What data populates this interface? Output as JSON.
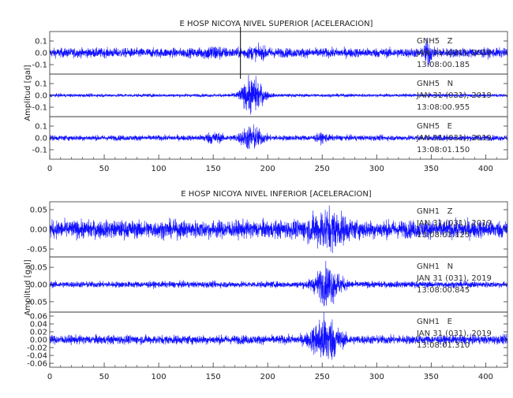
{
  "colors": {
    "trace": "#1010ff",
    "axis": "#333333",
    "marker": "#000000"
  },
  "chart_data": [
    {
      "type": "line",
      "title": "E HOSP NICOYA NIVEL SUPERIOR [ACELERACION]",
      "ylabel": "Amplitud [gal]",
      "xlim": [
        0,
        420
      ],
      "xticks": [
        "0",
        "50",
        "100",
        "150",
        "200",
        "250",
        "300",
        "350",
        "400"
      ],
      "marker_x": 175,
      "series": [
        {
          "channel": "GNH5   Z",
          "date": "JAN 31 (031), 2019",
          "time": "13:08:00.185",
          "ylim": [
            -0.18,
            0.18
          ],
          "yticks": [
            0.1,
            0.0,
            -0.1
          ],
          "ytick_labels": [
            "0.1",
            "0.0",
            "-0.1"
          ],
          "noise_amp": 0.035,
          "events": [
            {
              "t": 150,
              "w": 9,
              "a": 0.03
            },
            {
              "t": 190,
              "w": 12,
              "a": 0.02
            },
            {
              "t": 347,
              "w": 3,
              "a": 0.09
            }
          ]
        },
        {
          "channel": "GNH5   N",
          "date": "JAN 31 (031), 2019",
          "time": "13:08:00.955",
          "ylim": [
            -0.18,
            0.18
          ],
          "yticks": [
            0.1,
            0.0,
            -0.1
          ],
          "ytick_labels": [
            "0.1",
            "0.0",
            "-0.1"
          ],
          "noise_amp": 0.012,
          "events": [
            {
              "t": 186,
              "w": 10,
              "a": 0.13
            }
          ]
        },
        {
          "channel": "GNH5   E",
          "date": "JAN 31 (031), 2019",
          "time": "13:08:01.150",
          "ylim": [
            -0.18,
            0.18
          ],
          "yticks": [
            0.1,
            0.0,
            -0.1
          ],
          "ytick_labels": [
            "0.1",
            "0.0",
            "-0.1"
          ],
          "noise_amp": 0.02,
          "events": [
            {
              "t": 150,
              "w": 8,
              "a": 0.03
            },
            {
              "t": 185,
              "w": 10,
              "a": 0.08
            },
            {
              "t": 250,
              "w": 6,
              "a": 0.02
            }
          ]
        }
      ]
    },
    {
      "type": "line",
      "title": "E HOSP NICOYA NIVEL INFERIOR [ACELERACION]",
      "ylabel": "Amplitud [gal]",
      "xlim": [
        0,
        420
      ],
      "xticks": [
        "0",
        "50",
        "100",
        "150",
        "200",
        "250",
        "300",
        "350",
        "400"
      ],
      "series": [
        {
          "channel": "GNH1   Z",
          "date": "JAN 31 (031), 2019",
          "time": "13:08:01.125",
          "ylim": [
            -0.07,
            0.07
          ],
          "yticks": [
            0.05,
            0.0,
            -0.05
          ],
          "ytick_labels": [
            "0.05",
            "0.00",
            "-0.05"
          ],
          "noise_amp": 0.02,
          "events": [
            {
              "t": 255,
              "w": 16,
              "a": 0.03
            }
          ]
        },
        {
          "channel": "GNH1   N",
          "date": "JAN 31 (031), 2019",
          "time": "13:08:00.845",
          "ylim": [
            -0.08,
            0.08
          ],
          "yticks": [
            0.05,
            0.0,
            -0.05
          ],
          "ytick_labels": [
            "0.05",
            "0.00",
            "-0.05"
          ],
          "noise_amp": 0.008,
          "events": [
            {
              "t": 255,
              "w": 12,
              "a": 0.045
            }
          ]
        },
        {
          "channel": "GNH1   E",
          "date": "JAN 31 (031), 2019",
          "time": "13:08:01.310",
          "ylim": [
            -0.07,
            0.07
          ],
          "yticks": [
            0.06,
            0.04,
            0.02,
            0.0,
            -0.02,
            -0.04,
            -0.06
          ],
          "ytick_labels": [
            "0.06",
            "0.04",
            "0.02",
            "0.00",
            "-0.02",
            "-0.04",
            "-0.06"
          ],
          "noise_amp": 0.01,
          "events": [
            {
              "t": 253,
              "w": 12,
              "a": 0.05
            }
          ]
        }
      ]
    }
  ]
}
